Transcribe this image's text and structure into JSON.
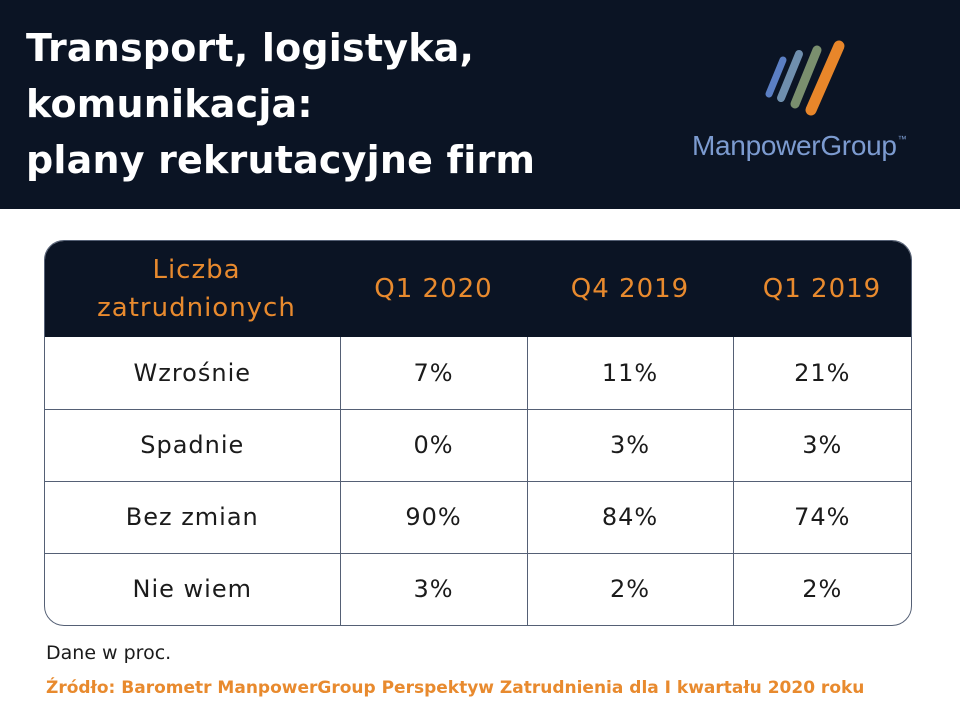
{
  "header": {
    "title_lines": [
      "Transport, logistyka,",
      "komunikacja:",
      "plany rekrutacyjne firm"
    ],
    "logo": {
      "name": "ManpowerGroup",
      "tm": "™",
      "bar_colors": [
        "#5b7fc4",
        "#6f8fae",
        "#7a8f6e",
        "#e8862a"
      ]
    },
    "background": "#0b1424"
  },
  "chart_data": {
    "type": "table",
    "columns": [
      "Liczba zatrudnionych",
      "Q1 2020",
      "Q4 2019",
      "Q1 2019"
    ],
    "header_first_lines": [
      "Liczba",
      "zatrudnionych"
    ],
    "rows": [
      {
        "label": "Wzrośnie",
        "values": [
          "7%",
          "11%",
          "21%"
        ]
      },
      {
        "label": "Spadnie",
        "values": [
          "0%",
          "3%",
          "3%"
        ]
      },
      {
        "label": "Bez zmian",
        "values": [
          "90%",
          "84%",
          "74%"
        ]
      },
      {
        "label": "Nie wiem",
        "values": [
          "3%",
          "2%",
          "2%"
        ]
      }
    ]
  },
  "footer": {
    "note": "Dane w proc.",
    "source": "Źródło: Barometr ManpowerGroup Perspektyw Zatrudnienia dla I kwartału 2020 roku"
  },
  "colors": {
    "accent": "#e88a2e",
    "dark": "#0b1424",
    "logo_text": "#7c9bd0"
  }
}
